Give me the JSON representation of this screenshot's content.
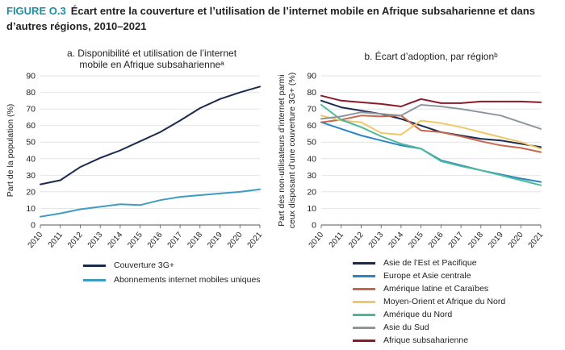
{
  "figure": {
    "number": "FIGURE O.3",
    "title": "Écart entre la couverture et l’utilisation de l’internet mobile en Afrique subsaharienne et dans d’autres régions, 2010–2021"
  },
  "chart_data": [
    {
      "type": "line",
      "panel_title": "a. Disponibilité et utilisation de l’internet mobile en Afrique subsaharienneᵃ",
      "ylabel": "Part de la population (%)",
      "xlabel": "",
      "x": [
        "2010",
        "2011",
        "2012",
        "2013",
        "2014",
        "2015",
        "2016",
        "2017",
        "2018",
        "2019",
        "2020",
        "2021"
      ],
      "ylim": [
        0,
        90
      ],
      "yticks": [
        0,
        10,
        20,
        30,
        40,
        50,
        60,
        70,
        80,
        90
      ],
      "grid": "horizontal",
      "legend_position": "bottom",
      "series": [
        {
          "name": "Couverture 3G+",
          "color": "#1b2a4f",
          "values": [
            24.5,
            27,
            35,
            40.5,
            45,
            50.5,
            56,
            63,
            70.5,
            76,
            80,
            83.5
          ]
        },
        {
          "name": "Abonnements internet mobiles uniques",
          "color": "#3d9bc4",
          "values": [
            5,
            7,
            9.5,
            11,
            12.5,
            12,
            15,
            17,
            18,
            19,
            20,
            21.5
          ]
        }
      ]
    },
    {
      "type": "line",
      "panel_title": "b. Écart d’adoption, par régionᵇ",
      "ylabel": "Part des non-utilisateurs d’internet parmi ceux disposant d’une couverture 3G+ (%)",
      "xlabel": "",
      "x": [
        "2010",
        "2011",
        "2012",
        "2013",
        "2014",
        "2015",
        "2016",
        "2017",
        "2018",
        "2019",
        "2020",
        "2021"
      ],
      "ylim": [
        0,
        90
      ],
      "yticks": [
        0,
        10,
        20,
        30,
        40,
        50,
        60,
        70,
        80,
        90
      ],
      "grid": "horizontal",
      "legend_position": "bottom",
      "series": [
        {
          "name": "Asie de l’Est et Pacifique",
          "color": "#1b2a4f",
          "values": [
            75,
            71,
            69,
            67,
            64,
            60,
            56,
            54,
            52,
            51,
            49,
            47
          ]
        },
        {
          "name": "Europe et Asie centrale",
          "color": "#2b85c4",
          "values": [
            62,
            58,
            54,
            51,
            48,
            46,
            39,
            36,
            33,
            30.5,
            28,
            26
          ]
        },
        {
          "name": "Amérique latine et Caraïbes",
          "color": "#c8664a",
          "values": [
            62,
            63.5,
            66,
            65.5,
            66,
            57,
            56,
            53.5,
            50.5,
            48,
            46.5,
            44
          ]
        },
        {
          "name": "Moyen-Orient et Afrique du Nord",
          "color": "#f0c868",
          "values": [
            66,
            63,
            62,
            55.5,
            54.5,
            63,
            61.5,
            59,
            56,
            53,
            50,
            46
          ]
        },
        {
          "name": "Amérique du Nord",
          "color": "#4eb89a",
          "values": [
            72.5,
            63.5,
            59,
            53.5,
            49,
            46,
            38.5,
            35.5,
            33,
            30,
            27,
            24
          ]
        },
        {
          "name": "Asie du Sud",
          "color": "#8e969d",
          "values": [
            64,
            65.5,
            68,
            67,
            66,
            72.5,
            71.5,
            70,
            68,
            66,
            62,
            58
          ]
        },
        {
          "name": "Afrique subsaharienne",
          "color": "#8c1a28",
          "values": [
            78,
            75,
            74,
            73,
            71.5,
            76,
            73.5,
            73.5,
            74.5,
            74.5,
            74.5,
            74
          ]
        }
      ]
    }
  ]
}
